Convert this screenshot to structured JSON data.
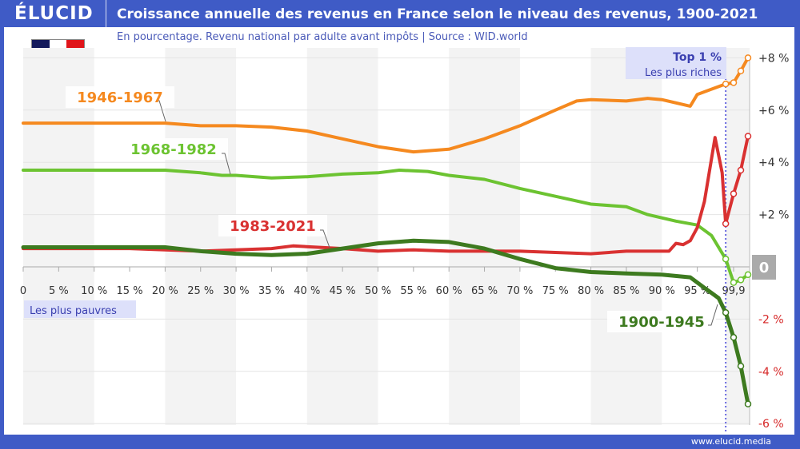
{
  "header": {
    "logo": "ÉLUCID",
    "title": "Croissance annuelle des revenus en France selon le niveau des revenus, 1900-2021"
  },
  "subtitle": "En pourcentage. Revenu national par adulte avant impôts  |  Source : WID.world",
  "footer": "www.elucid.media",
  "flag": {
    "colors": [
      "#141a5c",
      "#ffffff",
      "#e0151a"
    ]
  },
  "chart_data": {
    "type": "line",
    "xlabel": "",
    "ylabel": "",
    "x_tick_labels": [
      "0",
      "5 %",
      "10 %",
      "15 %",
      "20 %",
      "25 %",
      "30 %",
      "35 %",
      "40 %",
      "45 %",
      "50 %",
      "55 %",
      "60 %",
      "65 %",
      "70 %",
      "75 %",
      "80 %",
      "85 %",
      "90 %",
      "95 %",
      "99,9"
    ],
    "y_tick_labels": [
      {
        "v": 8,
        "t": "+8 %"
      },
      {
        "v": 6,
        "t": "+6 %"
      },
      {
        "v": 4,
        "t": "+4 %"
      },
      {
        "v": 2,
        "t": "+2 %"
      },
      {
        "v": 0,
        "t": "0"
      },
      {
        "v": -2,
        "t": "-2 %"
      },
      {
        "v": -4,
        "t": "-4 %"
      },
      {
        "v": -6,
        "t": "-6 %"
      }
    ],
    "ylim": [
      -6,
      8
    ],
    "xlim": [
      0,
      100
    ],
    "grid": true,
    "annotations": {
      "top": "Top 1 %",
      "top_sub": "Les plus riches",
      "bottom": "Les plus pauvres"
    },
    "colors": {
      "positive": "#333333",
      "negative": "#d62828",
      "zero_box": "#aaaaaa",
      "annotation_bg": "#dde0fa",
      "annotation_text": "#3a3fb0"
    },
    "series": [
      {
        "name": "1946-1967",
        "color": "#f5891f",
        "x": [
          0,
          5,
          10,
          15,
          20,
          25,
          30,
          35,
          40,
          45,
          50,
          55,
          60,
          65,
          70,
          75,
          78,
          80,
          85,
          88,
          90,
          94,
          95,
          97,
          99,
          99.5,
          99.9,
          99.99
        ],
        "y": [
          5.5,
          5.5,
          5.5,
          5.5,
          5.5,
          5.4,
          5.4,
          5.35,
          5.2,
          4.9,
          4.6,
          4.4,
          4.5,
          4.9,
          5.4,
          6.0,
          6.35,
          6.4,
          6.35,
          6.45,
          6.4,
          6.15,
          6.6,
          6.8,
          7.0,
          7.05,
          7.5,
          8.0
        ]
      },
      {
        "name": "1968-1982",
        "color": "#6cc331",
        "x": [
          0,
          5,
          10,
          15,
          20,
          25,
          28,
          30,
          35,
          40,
          45,
          50,
          53,
          57,
          60,
          65,
          70,
          75,
          80,
          85,
          88,
          92,
          95,
          97,
          99,
          99.5,
          99.9,
          99.99
        ],
        "y": [
          3.7,
          3.7,
          3.7,
          3.7,
          3.7,
          3.6,
          3.5,
          3.5,
          3.4,
          3.45,
          3.55,
          3.6,
          3.7,
          3.65,
          3.5,
          3.35,
          3.0,
          2.7,
          2.4,
          2.3,
          2.0,
          1.75,
          1.6,
          1.2,
          0.3,
          -0.6,
          -0.5,
          -0.3
        ]
      },
      {
        "name": "1983-2021",
        "color": "#d93131",
        "x": [
          0,
          5,
          10,
          15,
          20,
          25,
          30,
          35,
          38,
          45,
          50,
          55,
          60,
          65,
          70,
          75,
          80,
          85,
          88,
          91,
          92,
          93,
          94,
          95,
          96,
          97.5,
          98.5,
          99,
          99.5,
          99.9,
          99.99
        ],
        "y": [
          0.7,
          0.7,
          0.7,
          0.7,
          0.65,
          0.6,
          0.65,
          0.7,
          0.8,
          0.7,
          0.6,
          0.65,
          0.6,
          0.6,
          0.6,
          0.55,
          0.5,
          0.6,
          0.6,
          0.6,
          0.9,
          0.85,
          1.0,
          1.5,
          2.5,
          4.95,
          3.6,
          1.65,
          2.8,
          3.7,
          5.0
        ]
      },
      {
        "name": "1900-1945",
        "color": "#3d7a1f",
        "x": [
          0,
          5,
          10,
          15,
          20,
          25,
          30,
          35,
          40,
          45,
          50,
          55,
          60,
          65,
          70,
          75,
          80,
          85,
          90,
          94,
          96,
          98,
          99,
          99.5,
          99.9,
          99.99
        ],
        "y": [
          0.75,
          0.75,
          0.75,
          0.75,
          0.75,
          0.6,
          0.5,
          0.45,
          0.5,
          0.7,
          0.9,
          1.0,
          0.95,
          0.7,
          0.3,
          -0.05,
          -0.2,
          -0.25,
          -0.3,
          -0.4,
          -0.8,
          -1.2,
          -1.75,
          -2.7,
          -3.8,
          -5.25
        ]
      }
    ]
  }
}
